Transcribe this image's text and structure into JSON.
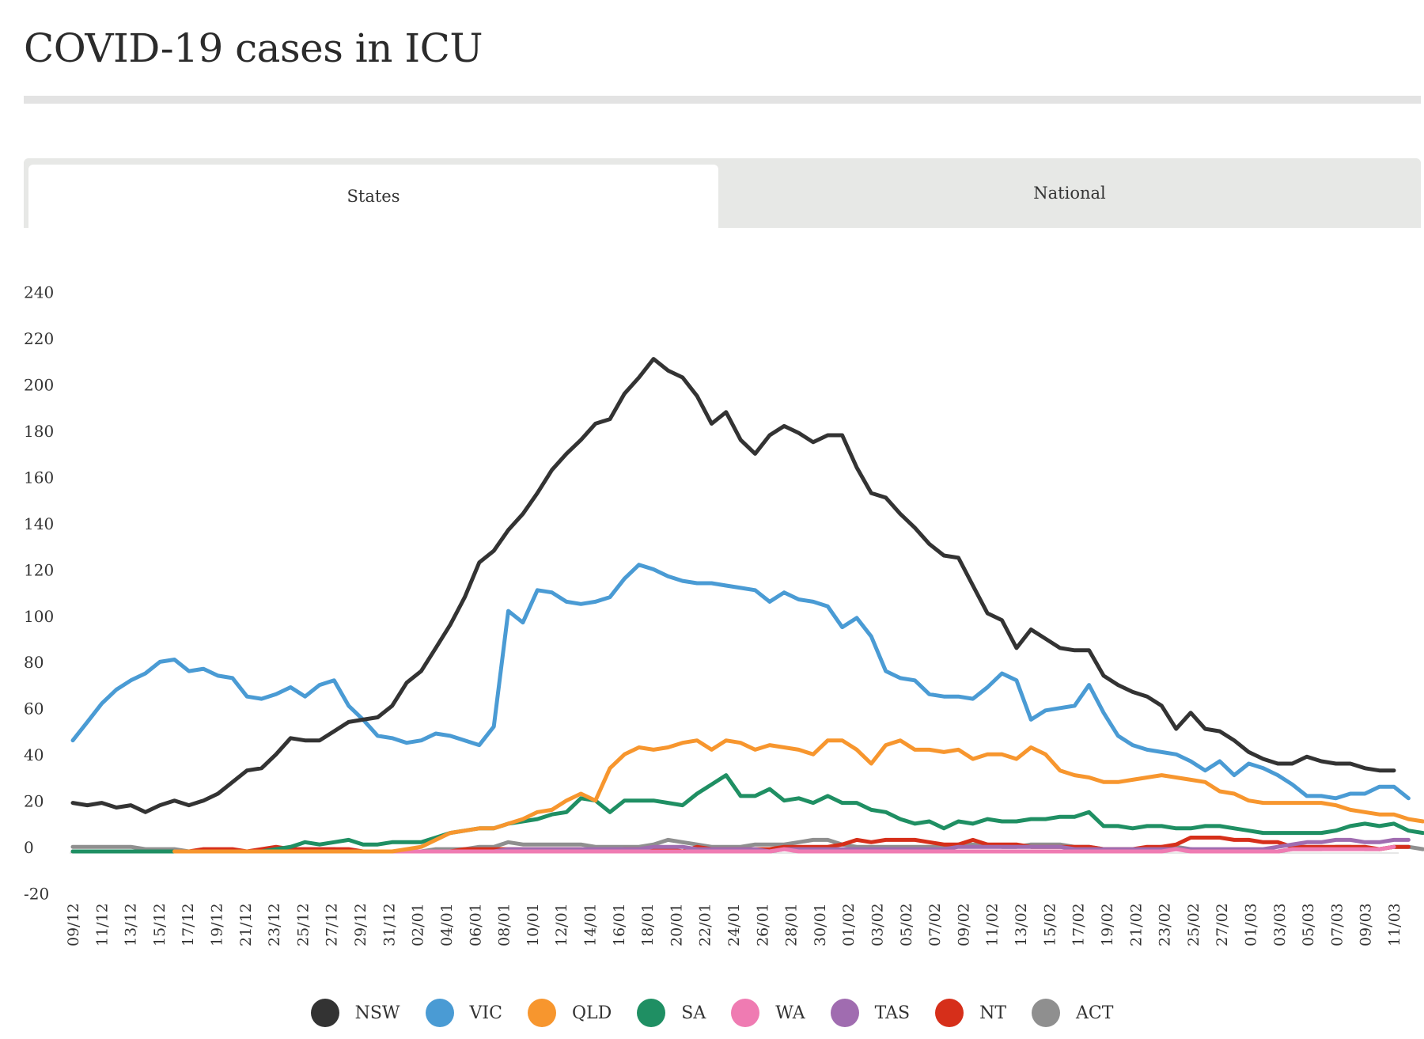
{
  "page": {
    "title": "COVID-19 cases in ICU"
  },
  "tabs": [
    {
      "label": "States",
      "active": true
    },
    {
      "label": "National",
      "active": false
    }
  ],
  "chart_data": {
    "type": "line",
    "title": "",
    "xlabel": "",
    "ylabel": "",
    "ylim": [
      -20,
      240
    ],
    "yticks": [
      "240",
      "220",
      "200",
      "180",
      "160",
      "140",
      "120",
      "100",
      "80",
      "60",
      "40",
      "20",
      "0",
      "-20"
    ],
    "ytick_values": [
      240,
      220,
      200,
      180,
      160,
      140,
      120,
      100,
      80,
      60,
      40,
      20,
      0,
      -20
    ],
    "x_tick_labels": [
      "09/12",
      "11/12",
      "13/12",
      "15/12",
      "17/12",
      "19/12",
      "21/12",
      "23/12",
      "25/12",
      "27/12",
      "29/12",
      "31/12",
      "02/01",
      "04/01",
      "06/01",
      "08/01",
      "10/01",
      "12/01",
      "14/01",
      "16/01",
      "18/01",
      "20/01",
      "22/01",
      "24/01",
      "26/01",
      "28/01",
      "30/01",
      "01/02",
      "03/02",
      "05/02",
      "07/02",
      "09/02",
      "11/02",
      "13/02",
      "15/02",
      "17/02",
      "19/02",
      "21/02",
      "23/02",
      "25/02",
      "27/02",
      "01/03",
      "03/03",
      "05/03",
      "07/03",
      "09/03",
      "11/03"
    ],
    "grid": false,
    "legend_position": "bottom",
    "series": [
      {
        "name": "NSW",
        "color": "#333333",
        "values": [
          21,
          20,
          21,
          19,
          20,
          17,
          20,
          22,
          20,
          22,
          25,
          30,
          35,
          36,
          42,
          49,
          48,
          48,
          52,
          56,
          57,
          58,
          63,
          73,
          78,
          88,
          98,
          110,
          125,
          130,
          139,
          146,
          155,
          165,
          172,
          178,
          185,
          187,
          198,
          205,
          213,
          208,
          205,
          197,
          185,
          190,
          178,
          172,
          180,
          184,
          181,
          177,
          180,
          180,
          166,
          155,
          153,
          146,
          140,
          133,
          128,
          127,
          115,
          103,
          100,
          88,
          96,
          92,
          88,
          87,
          87,
          76,
          72,
          69,
          67,
          63,
          53,
          60,
          53,
          52,
          48,
          43,
          40,
          38,
          38,
          41,
          39,
          38,
          38,
          36,
          35,
          35
        ]
      },
      {
        "name": "VIC",
        "color": "#4a9bd4",
        "values": [
          48,
          56,
          64,
          70,
          74,
          77,
          82,
          83,
          78,
          79,
          76,
          75,
          67,
          66,
          68,
          71,
          67,
          72,
          74,
          63,
          57,
          50,
          49,
          47,
          48,
          51,
          50,
          48,
          46,
          54,
          104,
          99,
          113,
          112,
          108,
          107,
          108,
          110,
          118,
          124,
          122,
          119,
          117,
          116,
          116,
          115,
          114,
          113,
          108,
          112,
          109,
          108,
          106,
          97,
          101,
          93,
          78,
          75,
          74,
          68,
          67,
          67,
          66,
          71,
          77,
          74,
          57,
          61,
          62,
          63,
          72,
          60,
          50,
          46,
          44,
          43,
          42,
          39,
          35,
          39,
          33,
          38,
          36,
          33,
          29,
          24,
          24,
          23,
          25,
          25,
          28,
          28,
          23
        ]
      },
      {
        "name": "QLD",
        "color": "#f7962e",
        "values": [
          null,
          null,
          null,
          null,
          null,
          null,
          null,
          0,
          0,
          0,
          0,
          0,
          0,
          0,
          0,
          0,
          0,
          0,
          0,
          0,
          0,
          0,
          0,
          1,
          2,
          5,
          8,
          9,
          10,
          10,
          12,
          14,
          17,
          18,
          22,
          25,
          22,
          36,
          42,
          45,
          44,
          45,
          47,
          48,
          44,
          48,
          47,
          44,
          46,
          45,
          44,
          42,
          48,
          48,
          44,
          38,
          46,
          48,
          44,
          44,
          43,
          44,
          40,
          42,
          42,
          40,
          45,
          42,
          35,
          33,
          32,
          30,
          30,
          31,
          32,
          33,
          32,
          31,
          30,
          26,
          25,
          22,
          21,
          21,
          21,
          21,
          21,
          20,
          18,
          17,
          16,
          16,
          14,
          13
        ]
      },
      {
        "name": "SA",
        "color": "#1f8f63",
        "values": [
          0,
          0,
          0,
          0,
          0,
          0,
          0,
          0,
          0,
          0,
          0,
          0,
          0,
          0,
          1,
          2,
          4,
          3,
          4,
          5,
          3,
          3,
          4,
          4,
          4,
          6,
          8,
          9,
          10,
          10,
          12,
          13,
          14,
          16,
          17,
          23,
          22,
          17,
          22,
          22,
          22,
          21,
          20,
          25,
          29,
          33,
          24,
          24,
          27,
          22,
          23,
          21,
          24,
          21,
          21,
          18,
          17,
          14,
          12,
          13,
          10,
          13,
          12,
          14,
          13,
          13,
          14,
          14,
          15,
          15,
          17,
          11,
          11,
          10,
          11,
          11,
          10,
          10,
          11,
          11,
          10,
          9,
          8,
          8,
          8,
          8,
          8,
          9,
          11,
          12,
          11,
          12,
          9,
          8
        ]
      },
      {
        "name": "WA",
        "color": "#ef7bb2",
        "values": [
          0,
          0,
          0,
          0,
          0,
          0,
          0,
          0,
          0,
          0,
          0,
          0,
          0,
          0,
          0,
          0,
          0,
          0,
          0,
          0,
          0,
          0,
          0,
          0,
          0,
          0,
          0,
          0,
          0,
          0,
          0,
          0,
          0,
          0,
          0,
          0,
          0,
          0,
          0,
          0,
          0,
          0,
          0,
          0,
          0,
          0,
          0,
          0,
          0,
          1,
          0,
          0,
          0,
          0,
          0,
          0,
          0,
          0,
          0,
          0,
          0,
          0,
          0,
          0,
          0,
          0,
          0,
          0,
          0,
          0,
          0,
          0,
          0,
          0,
          0,
          0,
          1,
          0,
          0,
          0,
          0,
          0,
          0,
          0,
          1,
          1,
          1,
          1,
          1,
          1,
          1,
          2
        ]
      },
      {
        "name": "TAS",
        "color": "#a06cb0",
        "values": [
          0,
          0,
          0,
          0,
          0,
          0,
          0,
          0,
          0,
          0,
          0,
          0,
          0,
          0,
          0,
          0,
          0,
          0,
          0,
          0,
          0,
          0,
          0,
          0,
          0,
          0,
          0,
          0,
          0,
          0,
          1,
          1,
          1,
          1,
          1,
          1,
          1,
          1,
          1,
          1,
          2,
          2,
          2,
          1,
          1,
          1,
          1,
          1,
          0,
          1,
          1,
          1,
          1,
          1,
          1,
          1,
          1,
          1,
          1,
          1,
          1,
          2,
          2,
          2,
          2,
          2,
          2,
          2,
          2,
          1,
          1,
          1,
          1,
          1,
          1,
          1,
          1,
          1,
          1,
          1,
          1,
          1,
          1,
          2,
          3,
          4,
          4,
          5,
          5,
          4,
          4,
          5,
          5
        ]
      },
      {
        "name": "NT",
        "color": "#d62f1a",
        "values": [
          0,
          0,
          0,
          0,
          0,
          0,
          0,
          0,
          0,
          1,
          1,
          1,
          0,
          1,
          2,
          1,
          1,
          1,
          1,
          1,
          0,
          0,
          0,
          0,
          0,
          0,
          0,
          1,
          1,
          1,
          1,
          1,
          1,
          1,
          1,
          1,
          0,
          0,
          1,
          1,
          1,
          1,
          0,
          2,
          1,
          1,
          1,
          1,
          1,
          2,
          2,
          2,
          2,
          3,
          5,
          4,
          5,
          5,
          5,
          4,
          3,
          3,
          5,
          3,
          3,
          3,
          2,
          2,
          2,
          2,
          2,
          1,
          1,
          1,
          2,
          2,
          3,
          6,
          6,
          6,
          5,
          5,
          4,
          4,
          2,
          2,
          2,
          2,
          2,
          2,
          1,
          2,
          2
        ]
      },
      {
        "name": "ACT",
        "color": "#8f8f8f",
        "values": [
          2,
          2,
          2,
          2,
          2,
          1,
          1,
          1,
          0,
          0,
          0,
          0,
          0,
          0,
          1,
          1,
          1,
          1,
          1,
          0,
          0,
          0,
          0,
          0,
          0,
          1,
          1,
          1,
          2,
          2,
          4,
          3,
          3,
          3,
          3,
          3,
          2,
          2,
          2,
          2,
          3,
          5,
          4,
          3,
          2,
          2,
          2,
          3,
          3,
          3,
          4,
          5,
          5,
          3,
          2,
          2,
          2,
          2,
          2,
          2,
          2,
          3,
          3,
          3,
          2,
          2,
          3,
          3,
          3,
          2,
          2,
          1,
          1,
          1,
          1,
          2,
          2,
          1,
          0,
          0,
          0,
          0,
          0,
          0,
          1,
          1,
          1,
          2,
          2,
          1,
          1,
          2,
          2,
          1
        ]
      }
    ]
  }
}
